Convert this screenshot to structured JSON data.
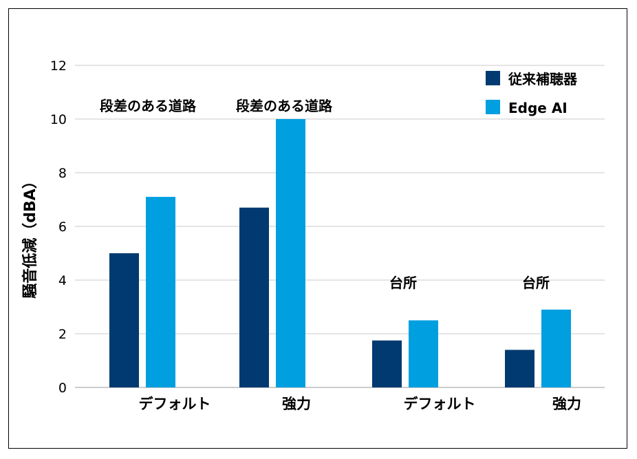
{
  "chart_data": {
    "type": "bar",
    "ylabel": "騒音低減（dBA）",
    "ylim": [
      0,
      12
    ],
    "yticks": [
      0,
      2,
      4,
      6,
      8,
      10,
      12
    ],
    "grid": true,
    "legend_position": "top-right",
    "categories": [
      "デフォルト",
      "強力",
      "デフォルト",
      "強力"
    ],
    "annotations": [
      "段差のある道路",
      "段差のある道路",
      "台所",
      "台所"
    ],
    "series": [
      {
        "name": "従来補聴器",
        "color": "#003a70",
        "values": [
          5.0,
          6.7,
          1.75,
          1.4
        ]
      },
      {
        "name": "Edge AI",
        "color": "#009fe0",
        "values": [
          7.1,
          10.0,
          2.5,
          2.9
        ]
      }
    ]
  }
}
